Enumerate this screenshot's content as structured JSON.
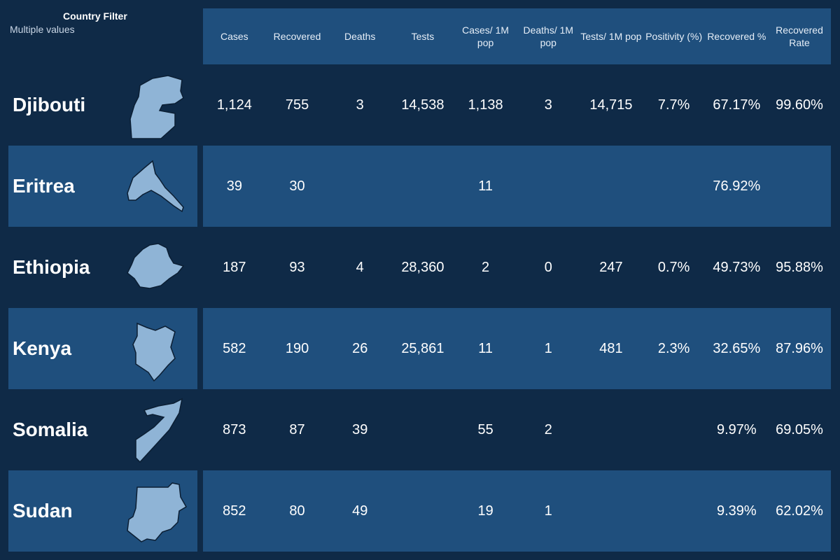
{
  "filter": {
    "title": "Country  Filter",
    "value": "Multiple values"
  },
  "columns": [
    "Cases",
    "Recovered",
    "Deaths",
    "Tests",
    "Cases/ 1M pop",
    "Deaths/ 1M pop",
    "Tests/ 1M pop",
    "Positivity (%)",
    "Recovered %",
    "Recovered Rate"
  ],
  "rows": [
    {
      "country": "Djibouti",
      "map_icon": "djibouti-map-icon",
      "values": [
        "1,124",
        "755",
        "3",
        "14,538",
        "1,138",
        "3",
        "14,715",
        "7.7%",
        "67.17%",
        "99.60%"
      ]
    },
    {
      "country": "Eritrea",
      "map_icon": "eritrea-map-icon",
      "values": [
        "39",
        "30",
        "",
        "",
        "11",
        "",
        "",
        "",
        "76.92%",
        ""
      ]
    },
    {
      "country": "Ethiopia",
      "map_icon": "ethiopia-map-icon",
      "values": [
        "187",
        "93",
        "4",
        "28,360",
        "2",
        "0",
        "247",
        "0.7%",
        "49.73%",
        "95.88%"
      ]
    },
    {
      "country": "Kenya",
      "map_icon": "kenya-map-icon",
      "values": [
        "582",
        "190",
        "26",
        "25,861",
        "11",
        "1",
        "481",
        "2.3%",
        "32.65%",
        "87.96%"
      ]
    },
    {
      "country": "Somalia",
      "map_icon": "somalia-map-icon",
      "values": [
        "873",
        "87",
        "39",
        "",
        "55",
        "2",
        "",
        "",
        "9.97%",
        "69.05%"
      ]
    },
    {
      "country": "Sudan",
      "map_icon": "sudan-map-icon",
      "values": [
        "852",
        "80",
        "49",
        "",
        "19",
        "1",
        "",
        "",
        "9.39%",
        "62.02%"
      ]
    }
  ],
  "colors": {
    "background": "#0f2a47",
    "band": "#1f4f7d",
    "map_fill": "#8fb4d6"
  }
}
